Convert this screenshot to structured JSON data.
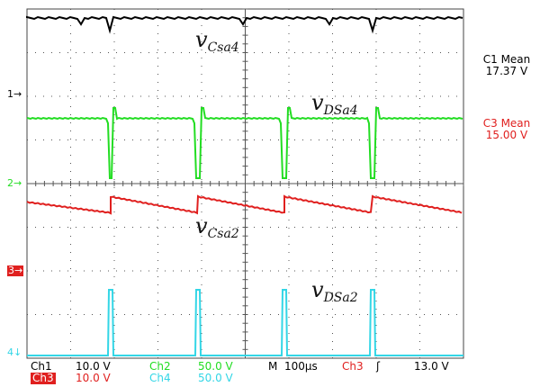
{
  "traces": {
    "vCsa4": {
      "main": "v",
      "sub": "Csa4"
    },
    "vDSa4": {
      "main": "v",
      "sub": "DSa4"
    },
    "vCsa2": {
      "main": "v",
      "sub": "Csa2"
    },
    "vDSa2": {
      "main": "v",
      "sub": "DSa2"
    }
  },
  "markers": {
    "ch1": "1",
    "ch2": "2",
    "ch3": "3",
    "ch4": "4"
  },
  "measurements": {
    "c1_label": "C1 Mean",
    "c1_value": "17.37 V",
    "c3_label": "C3 Mean",
    "c3_value": "15.00 V"
  },
  "status": {
    "ch1": "Ch1",
    "ch1_scale": "10.0 V",
    "ch2": "Ch2",
    "ch2_scale": "50.0 V",
    "ch3": "Ch3",
    "ch3_scale": "10.0 V",
    "ch4": "Ch4",
    "ch4_scale": "50.0 V",
    "timebase_prefix": "M",
    "timebase": "100µs",
    "trigger_source": "Ch3",
    "trigger_slope": "ʃ",
    "trigger_level": "13.0 V"
  },
  "colors": {
    "ch1": "#000000",
    "ch2": "#22dd22",
    "ch3": "#e0201f",
    "ch4": "#33d6e6"
  }
}
